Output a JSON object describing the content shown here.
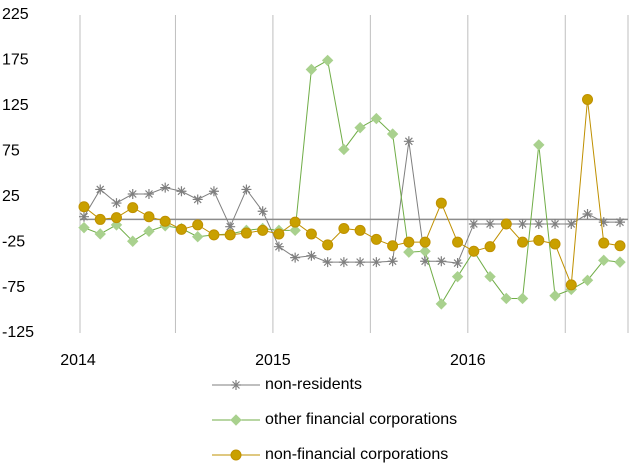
{
  "chart_data": {
    "type": "line",
    "categories": [
      "2014",
      null,
      null,
      null,
      null,
      null,
      null,
      null,
      null,
      null,
      null,
      null,
      "2015",
      null,
      null,
      null,
      null,
      null,
      null,
      null,
      null,
      null,
      null,
      null,
      "2016",
      null,
      null,
      null,
      null,
      null,
      null,
      null,
      null,
      null
    ],
    "series": [
      {
        "name": "non-residents",
        "color": "#7f7f7f",
        "marker": "star",
        "values": [
          3,
          33,
          18,
          28,
          28,
          35,
          31,
          22,
          31,
          -8,
          33,
          9,
          -30,
          -42,
          -40,
          -47,
          -47,
          -47,
          -47,
          -46,
          86,
          -46,
          -46,
          -48,
          -5,
          -5,
          -5,
          -5,
          -5,
          -5,
          -5,
          6,
          -3,
          -3
        ]
      },
      {
        "name": "other financial corporations",
        "color": "#70ad47",
        "marker_color": "#a9d18e",
        "marker": "diamond",
        "values": [
          -9,
          -16,
          -6,
          -24,
          -13,
          -7,
          -10,
          -19,
          -17,
          -16,
          -12,
          -10,
          -12,
          -12,
          165,
          175,
          77,
          101,
          111,
          94,
          -36,
          -35,
          -93,
          -63,
          -35,
          -63,
          -87,
          -87,
          82,
          -84,
          -77,
          -67,
          -45,
          -47
        ]
      },
      {
        "name": "non-financial corporations",
        "color": "#bf9000",
        "marker_color": "#c9a000",
        "marker": "circle",
        "values": [
          14,
          0,
          2,
          13,
          3,
          -2,
          -11,
          -6,
          -17,
          -17,
          -15,
          -12,
          -16,
          -3,
          -16,
          -28,
          -10,
          -12,
          -22,
          -29,
          -25,
          -25,
          18,
          -25,
          -35,
          -30,
          -5,
          -25,
          -23,
          -27,
          -72,
          132,
          -26,
          -29
        ]
      }
    ],
    "ylim": [
      -125,
      225
    ],
    "yticks": [
      -125,
      -75,
      -25,
      25,
      75,
      125,
      175,
      225
    ]
  }
}
